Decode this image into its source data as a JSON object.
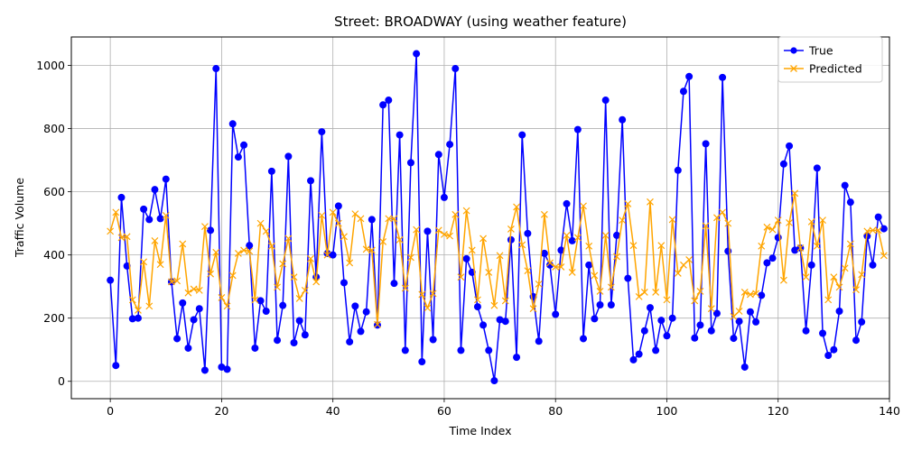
{
  "chart_data": {
    "type": "line",
    "title": "Street: BROADWAY (using weather feature)",
    "xlabel": "Time Index",
    "ylabel": "Traffic Volume",
    "xlim": [
      -7,
      140
    ],
    "ylim": [
      -55,
      1090
    ],
    "xticks": [
      0,
      20,
      40,
      60,
      80,
      100,
      120,
      140
    ],
    "yticks": [
      0,
      200,
      400,
      600,
      800,
      1000
    ],
    "grid": true,
    "legend_position": "top-right",
    "x": [
      0,
      1,
      2,
      3,
      4,
      5,
      6,
      7,
      8,
      9,
      10,
      11,
      12,
      13,
      14,
      15,
      16,
      17,
      18,
      19,
      20,
      21,
      22,
      23,
      24,
      25,
      26,
      27,
      28,
      29,
      30,
      31,
      32,
      33,
      34,
      35,
      36,
      37,
      38,
      39,
      40,
      41,
      42,
      43,
      44,
      45,
      46,
      47,
      48,
      49,
      50,
      51,
      52,
      53,
      54,
      55,
      56,
      57,
      58,
      59,
      60,
      61,
      62,
      63,
      64,
      65,
      66,
      67,
      68,
      69,
      70,
      71,
      72,
      73,
      74,
      75,
      76,
      77,
      78,
      79,
      80,
      81,
      82,
      83,
      84,
      85,
      86,
      87,
      88,
      89,
      90,
      91,
      92,
      93,
      94,
      95,
      96,
      97,
      98,
      99,
      100,
      101,
      102,
      103,
      104,
      105,
      106,
      107,
      108,
      109,
      110,
      111,
      112,
      113,
      114,
      115,
      116,
      117,
      118,
      119,
      120,
      121,
      122,
      123,
      124,
      125,
      126,
      127,
      128,
      129,
      130,
      131,
      132,
      133,
      134,
      135,
      136,
      137,
      138,
      139
    ],
    "series": [
      {
        "name": "True",
        "color": "#0000ff",
        "marker": "circle",
        "values": [
          320,
          50,
          582,
          365,
          198,
          200,
          545,
          512,
          607,
          515,
          640,
          315,
          135,
          248,
          105,
          195,
          230,
          35,
          478,
          990,
          45,
          38,
          815,
          710,
          748,
          430,
          105,
          255,
          222,
          665,
          130,
          240,
          712,
          122,
          192,
          147,
          635,
          330,
          790,
          405,
          400,
          555,
          312,
          125,
          238,
          158,
          220,
          512,
          178,
          875,
          890,
          310,
          780,
          98,
          692,
          1037,
          62,
          475,
          132,
          718,
          582,
          750,
          990,
          98,
          388,
          345,
          236,
          178,
          98,
          2,
          195,
          190,
          448,
          76,
          780,
          468,
          268,
          127,
          405,
          368,
          212,
          415,
          562,
          445,
          797,
          135,
          368,
          198,
          242,
          890,
          242,
          462,
          828,
          326,
          68,
          86,
          160,
          233,
          98,
          193,
          144,
          200,
          668,
          918,
          965,
          137,
          178,
          752,
          160,
          215,
          962,
          412,
          136,
          190,
          45,
          220,
          188,
          272,
          375,
          390,
          455,
          688,
          745,
          415,
          422,
          160,
          368,
          675,
          152,
          82,
          100,
          222,
          620,
          567,
          130,
          188,
          460,
          368,
          520,
          483
        ]
      },
      {
        "name": "Predicted",
        "color": "#ffa500",
        "marker": "x",
        "values": [
          475,
          535,
          455,
          458,
          258,
          225,
          378,
          238,
          445,
          370,
          525,
          315,
          318,
          435,
          280,
          292,
          288,
          490,
          340,
          408,
          265,
          238,
          335,
          405,
          415,
          412,
          258,
          500,
          475,
          428,
          298,
          372,
          452,
          330,
          262,
          288,
          388,
          315,
          525,
          400,
          535,
          500,
          458,
          375,
          530,
          515,
          418,
          415,
          180,
          442,
          515,
          515,
          448,
          295,
          392,
          480,
          275,
          232,
          278,
          478,
          465,
          460,
          528,
          330,
          540,
          415,
          258,
          452,
          345,
          240,
          398,
          255,
          482,
          552,
          432,
          350,
          230,
          308,
          528,
          375,
          362,
          362,
          462,
          345,
          455,
          555,
          428,
          335,
          285,
          462,
          298,
          395,
          510,
          562,
          430,
          268,
          282,
          568,
          282,
          430,
          258,
          512,
          342,
          368,
          385,
          255,
          285,
          492,
          230,
          518,
          535,
          500,
          205,
          222,
          282,
          275,
          278,
          428,
          488,
          480,
          510,
          320,
          502,
          595,
          422,
          330,
          505,
          428,
          510,
          258,
          330,
          298,
          358,
          435,
          290,
          338,
          475,
          478,
          478,
          398
        ]
      }
    ]
  }
}
